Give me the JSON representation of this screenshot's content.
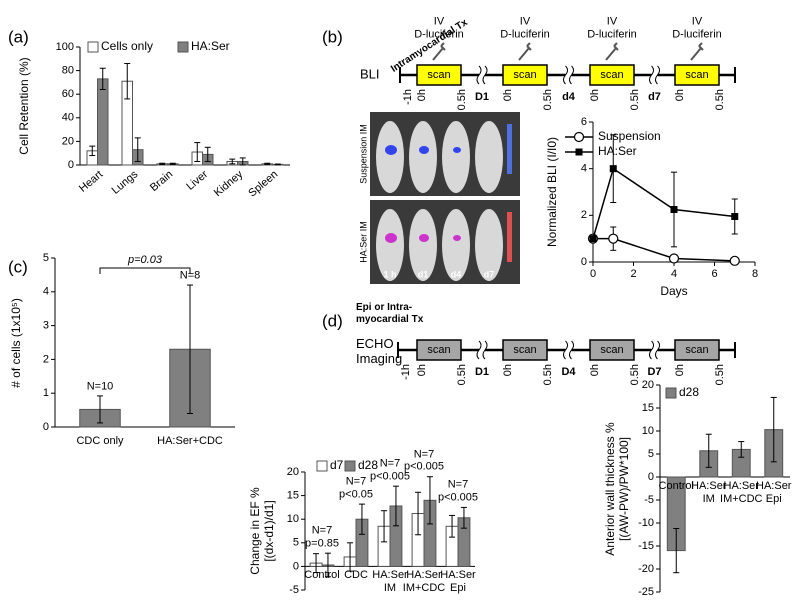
{
  "panels": [
    "(a)",
    "(b)",
    "(c)",
    "(d)"
  ],
  "timeline_b": {
    "title": "Intramyocardial Tx",
    "label": "BLI",
    "injections": [
      "IV\nD-luciferin",
      "IV\nD-luciferin",
      "IV\nD-luciferin",
      "IV\nD-luciferin"
    ],
    "scans": [
      "scan",
      "scan",
      "scan",
      "scan"
    ],
    "ticks": [
      "-1h",
      "0h",
      "0.5h",
      "D1",
      "0h",
      "0.5h",
      "d4",
      "0h",
      "0.5h",
      "d7",
      "0h",
      "0.5h"
    ]
  },
  "timeline_d": {
    "title": "Epi or Intra-\nmyocardial Tx",
    "label": "ECHO\nImaging",
    "scans": [
      "scan",
      "scan",
      "scan",
      "scan"
    ],
    "ticks": [
      "-1h",
      "0h",
      "0.5h",
      "D1",
      "0h",
      "0.5h",
      "D4",
      "0h",
      "0.5h",
      "D7",
      "0h",
      "0.5h"
    ]
  },
  "images": {
    "rows": [
      "Suspension IM",
      "HA:Ser IM"
    ],
    "cols": [
      "1 h",
      "d1",
      "d4",
      "d7"
    ]
  },
  "chart_data": [
    {
      "type": "bar",
      "ylabel": "Cell Retention (%)",
      "categories": [
        "Heart",
        "Lungs",
        "Brain",
        "Liver",
        "Kidney",
        "Spleen"
      ],
      "series": [
        {
          "name": "Cells only",
          "color": "#ffffff",
          "values": [
            12,
            71,
            1,
            11,
            3,
            1
          ],
          "errors": [
            4,
            15,
            0.5,
            8,
            2,
            0.5
          ]
        },
        {
          "name": "HA:Ser",
          "color": "#808080",
          "values": [
            73,
            13,
            1,
            9,
            3,
            0.5
          ],
          "errors": [
            9,
            10,
            0.5,
            6,
            3,
            0.3
          ]
        }
      ],
      "ylim": [
        0,
        100
      ],
      "yticks": [
        0,
        20,
        40,
        60,
        80,
        100
      ]
    },
    {
      "type": "line",
      "xlabel": "Days",
      "ylabel": "Normalized BLI (I/I0)",
      "x": [
        0,
        1,
        4,
        7
      ],
      "series": [
        {
          "name": "Suspension",
          "color": "#000000",
          "marker": "open-circle",
          "values": [
            1,
            1,
            0.15,
            0.05
          ],
          "errors": [
            0,
            0.5,
            0.1,
            0.05
          ]
        },
        {
          "name": "HA:Ser",
          "color": "#000000",
          "marker": "square",
          "values": [
            1,
            4,
            2.25,
            1.95
          ],
          "errors": [
            0,
            1.45,
            1.6,
            0.75
          ]
        }
      ],
      "xlim": [
        0,
        8
      ],
      "xticks": [
        0,
        2,
        4,
        6,
        8
      ],
      "ylim": [
        0,
        6
      ],
      "yticks": [
        0,
        2,
        4,
        6
      ]
    },
    {
      "type": "bar",
      "ylabel": "# of cells (1x10⁵)",
      "categories": [
        "CDC only",
        "HA:Ser+CDC"
      ],
      "color": "#808080",
      "values": [
        0.52,
        2.3
      ],
      "errors": [
        0.4,
        1.9
      ],
      "annotations": [
        "N=10",
        "N=8"
      ],
      "bracket": "p=0.03",
      "ylim": [
        0,
        5
      ],
      "yticks": [
        0,
        1,
        2,
        3,
        4,
        5
      ]
    },
    {
      "type": "bar",
      "ylabel": "Change in EF %\n[(dx-d1)/d1]",
      "categories": [
        "Control",
        "CDC",
        "HA:Ser\nIM",
        "HA:Ser\nIM+CDC",
        "HA:Ser\nEpi"
      ],
      "series": [
        {
          "name": "d7",
          "color": "#ffffff",
          "values": [
            0.7,
            2,
            8.5,
            11.2,
            8.5
          ],
          "errors": [
            2,
            3,
            3.3,
            4.5,
            2.3
          ]
        },
        {
          "name": "d28",
          "color": "#808080",
          "values": [
            0.3,
            10,
            12.8,
            14,
            10.3
          ],
          "errors": [
            2.5,
            3.2,
            4.2,
            5,
            2.2
          ]
        }
      ],
      "annotations": [
        "N=7\np=0.85",
        "N=7\np<0.05",
        "N=7\np<0.005",
        "N=7\np<0.005",
        "N=7\np<0.005"
      ],
      "ylim": [
        -5,
        20
      ],
      "yticks": [
        -5,
        0,
        5,
        10,
        15,
        20
      ]
    },
    {
      "type": "bar",
      "ylabel": "Anterior wall thickness %\n[(AW-PW)/PW*100]",
      "categories": [
        "Control",
        "HA:Ser\nIM",
        "HA:Ser\nIM+CDC",
        "HA:Ser\nEpi"
      ],
      "series": [
        {
          "name": "d28",
          "color": "#808080",
          "values": [
            -16,
            5.7,
            6,
            10.3
          ],
          "errors": [
            4.8,
            3.6,
            1.7,
            7
          ]
        }
      ],
      "ylim": [
        -25,
        20
      ],
      "yticks": [
        -25,
        -20,
        -15,
        -10,
        -5,
        0,
        5,
        10,
        15,
        20
      ]
    }
  ]
}
